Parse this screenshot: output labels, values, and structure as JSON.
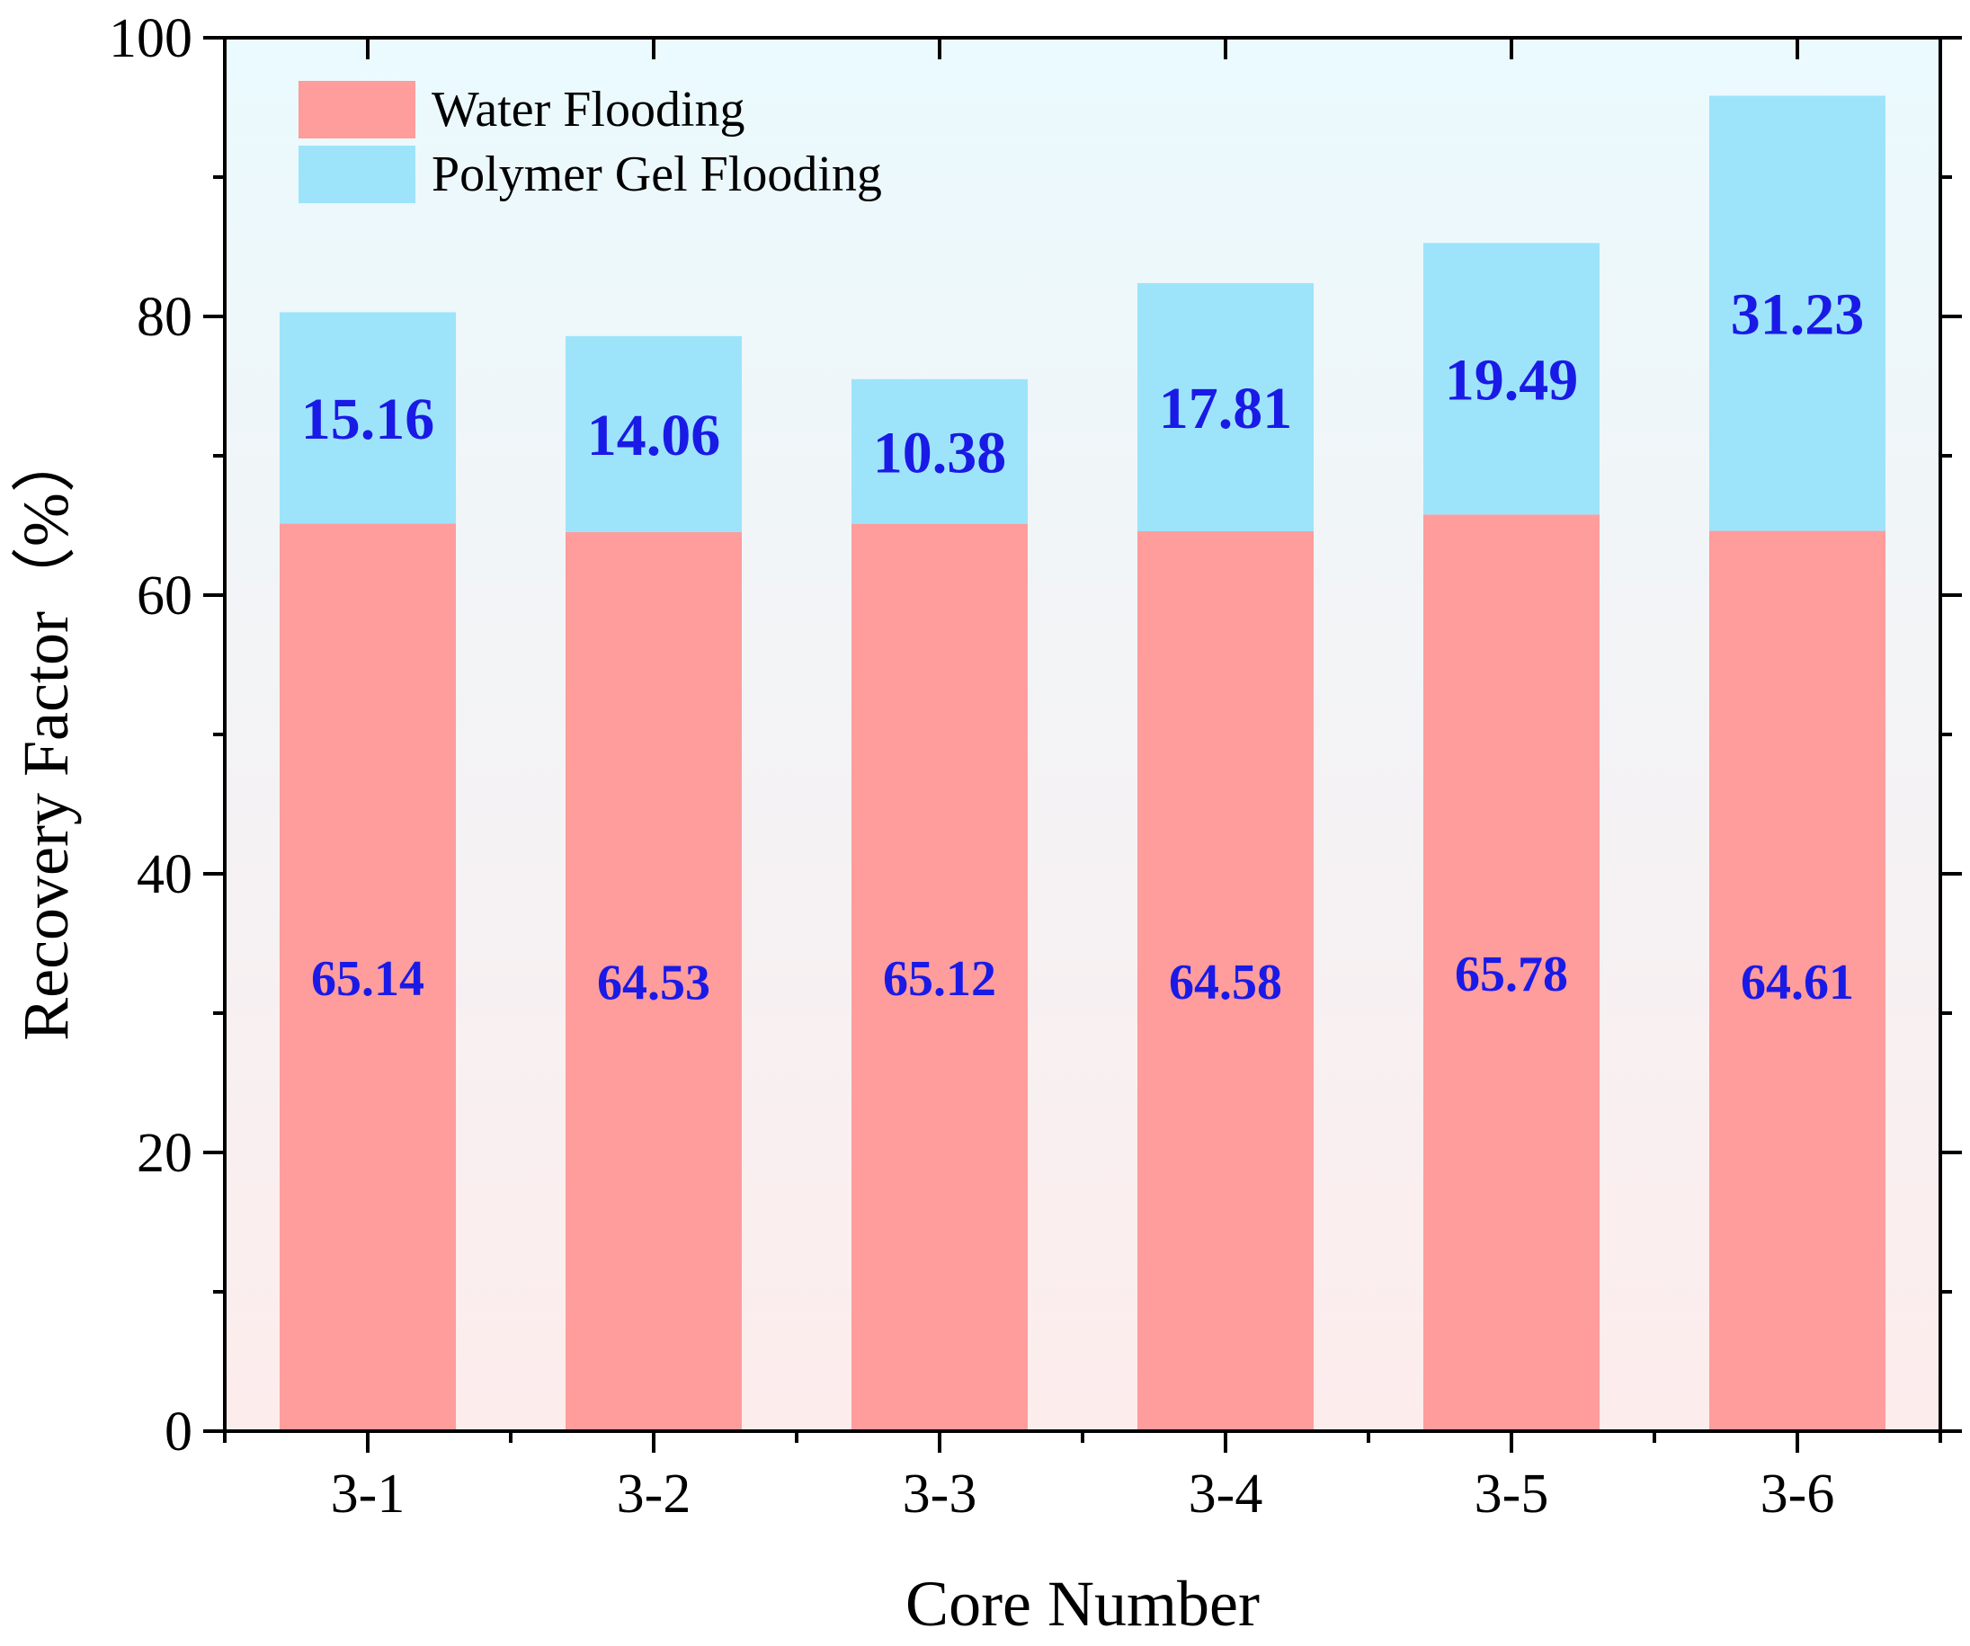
{
  "chart_data": {
    "type": "bar",
    "stacked": true,
    "title": "",
    "xlabel": "Core Number",
    "ylabel": "Recovery Factor（%）",
    "ylim": [
      0,
      100
    ],
    "yticks": [
      0,
      20,
      40,
      60,
      80,
      100
    ],
    "categories": [
      "3-1",
      "3-2",
      "3-3",
      "3-4",
      "3-5",
      "3-6"
    ],
    "series": [
      {
        "name": "Water Flooding",
        "color": "#ff9c9c",
        "values": [
          65.14,
          64.53,
          65.12,
          64.58,
          65.78,
          64.61
        ]
      },
      {
        "name": "Polymer Gel Flooding",
        "color": "#9de4fa",
        "values": [
          15.16,
          14.06,
          10.38,
          17.81,
          19.49,
          31.23
        ]
      }
    ],
    "legend_position": "top-left",
    "label_color": "#1a1ae6",
    "background_gradient": [
      "#eafafe",
      "#fdecec"
    ]
  }
}
